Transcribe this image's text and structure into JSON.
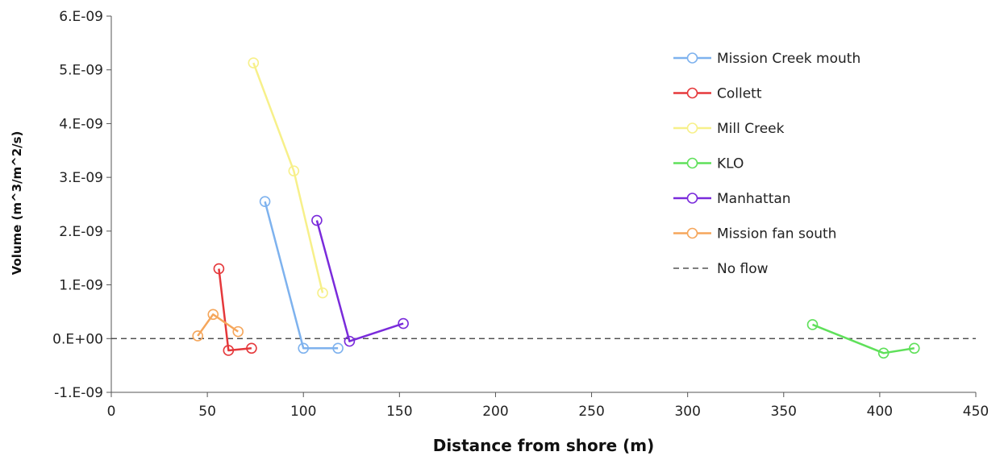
{
  "chart_data": {
    "type": "scatter",
    "title": "",
    "xlabel": "Distance from shore (m)",
    "ylabel": "Volume (m^3/m^2/s)",
    "xlim": [
      0,
      450
    ],
    "ylim": [
      -1e-09,
      6e-09
    ],
    "x_ticks": [
      0,
      50,
      100,
      150,
      200,
      250,
      300,
      350,
      400,
      450
    ],
    "x_tick_labels": [
      "0",
      "50",
      "100",
      "150",
      "200",
      "250",
      "300",
      "350",
      "400",
      "450"
    ],
    "y_ticks": [
      -1e-09,
      0,
      1e-09,
      2e-09,
      3e-09,
      4e-09,
      5e-09,
      6e-09
    ],
    "y_tick_labels": [
      "-1.E-09",
      "0.E+00",
      "1.E-09",
      "2.E-09",
      "3.E-09",
      "4.E-09",
      "5.E-09",
      "6.E-09"
    ],
    "grid": false,
    "legend_position": "top-right",
    "series": [
      {
        "name": "Mission Creek mouth",
        "color": "#7EB2EE",
        "points": [
          [
            80,
            2.55e-09
          ],
          [
            100,
            -1.8e-10
          ],
          [
            118,
            -1.8e-10
          ]
        ]
      },
      {
        "name": "Collett",
        "color": "#E5383B",
        "points": [
          [
            56,
            1.3e-09
          ],
          [
            61,
            -2.2e-10
          ],
          [
            73,
            -1.8e-10
          ]
        ]
      },
      {
        "name": "Mill Creek",
        "color": "#F7F08A",
        "points": [
          [
            74,
            5.13e-09
          ],
          [
            95,
            3.12e-09
          ],
          [
            110,
            8.5e-10
          ]
        ]
      },
      {
        "name": "KLO",
        "color": "#5FE05A",
        "points": [
          [
            365,
            2.6e-10
          ],
          [
            402,
            -2.7e-10
          ],
          [
            418,
            -1.8e-10
          ]
        ]
      },
      {
        "name": "Manhattan",
        "color": "#7A2BDB",
        "points": [
          [
            107,
            2.2e-09
          ],
          [
            124,
            -5e-11
          ],
          [
            152,
            2.8e-10
          ]
        ]
      },
      {
        "name": "Mission fan south",
        "color": "#F5A65B",
        "points": [
          [
            45,
            5e-11
          ],
          [
            53,
            4.5e-10
          ],
          [
            66,
            1.3e-10
          ]
        ]
      }
    ],
    "reference_line": {
      "name": "No flow",
      "y": 0,
      "style": "dashed",
      "color": "#333333"
    }
  }
}
